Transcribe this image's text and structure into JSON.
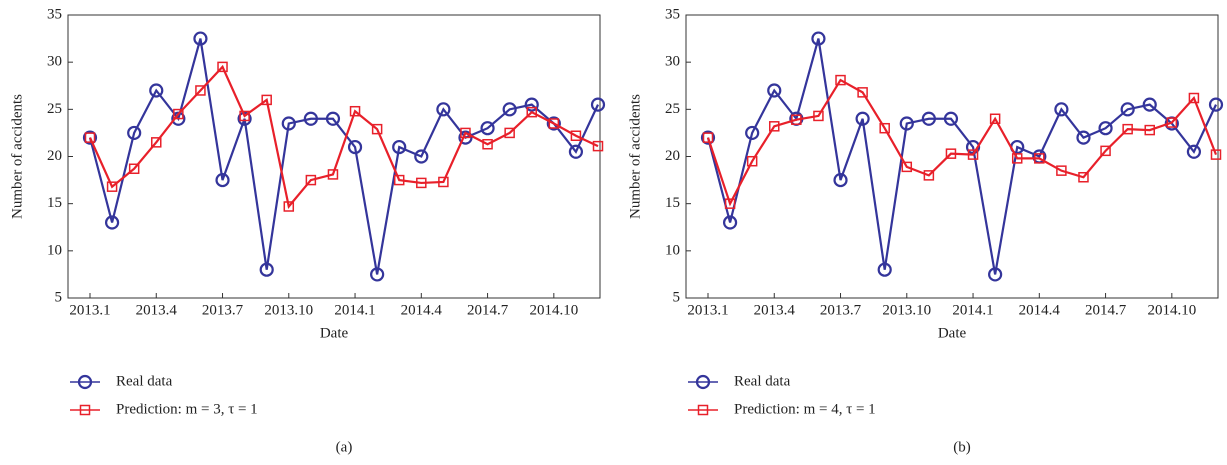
{
  "chart_data": [
    {
      "type": "line",
      "caption": "(a)",
      "xlabel": "Date",
      "ylabel": "Number of accidents",
      "categories": [
        "2013.1",
        null,
        null,
        "2013.4",
        null,
        null,
        "2013.7",
        null,
        null,
        "2013.10",
        null,
        null,
        "2014.1",
        null,
        null,
        "2014.4",
        null,
        null,
        "2014.7",
        null,
        null,
        "2014.10",
        null,
        null
      ],
      "series": [
        {
          "name": "Real data",
          "color": "#34359b",
          "marker": "circle",
          "values": [
            22,
            13,
            22.5,
            27,
            24,
            32.5,
            17.5,
            24,
            8,
            23.5,
            24,
            24,
            21,
            7.5,
            21,
            20,
            25,
            22,
            23,
            25,
            25.5,
            23.5,
            20.5,
            25.5
          ]
        },
        {
          "name": "Prediction: m = 3, τ = 1",
          "color": "#e8202a",
          "marker": "square",
          "values": [
            22,
            16.8,
            18.7,
            21.5,
            24.5,
            27,
            29.5,
            24.3,
            26,
            14.7,
            17.5,
            18.1,
            24.8,
            22.9,
            17.5,
            17.2,
            17.3,
            22.5,
            21.3,
            22.5,
            24.7,
            23.5,
            22.2,
            21.1
          ]
        }
      ],
      "ylim": [
        5,
        35
      ],
      "yticks": [
        5,
        10,
        15,
        20,
        25,
        30,
        35
      ]
    },
    {
      "type": "line",
      "caption": "(b)",
      "xlabel": "Date",
      "ylabel": "Number of accidents",
      "categories": [
        "2013.1",
        null,
        null,
        "2013.4",
        null,
        null,
        "2013.7",
        null,
        null,
        "2013.10",
        null,
        null,
        "2014.1",
        null,
        null,
        "2014.4",
        null,
        null,
        "2014.7",
        null,
        null,
        "2014.10",
        null,
        null
      ],
      "series": [
        {
          "name": "Real data",
          "color": "#34359b",
          "marker": "circle",
          "values": [
            22,
            13,
            22.5,
            27,
            24,
            32.5,
            17.5,
            24,
            8,
            23.5,
            24,
            24,
            21,
            7.5,
            21,
            20,
            25,
            22,
            23,
            25,
            25.5,
            23.5,
            20.5,
            25.5
          ]
        },
        {
          "name": "Prediction: m = 4, τ = 1",
          "color": "#e8202a",
          "marker": "square",
          "values": [
            22,
            15,
            19.5,
            23.2,
            23.9,
            24.3,
            28.1,
            26.8,
            23,
            18.9,
            18,
            20.3,
            20.2,
            24,
            19.8,
            19.8,
            18.5,
            17.8,
            20.6,
            22.9,
            22.8,
            23.6,
            26.2,
            20.2
          ]
        }
      ],
      "ylim": [
        5,
        35
      ],
      "yticks": [
        5,
        10,
        15,
        20,
        25,
        30,
        35
      ]
    }
  ]
}
